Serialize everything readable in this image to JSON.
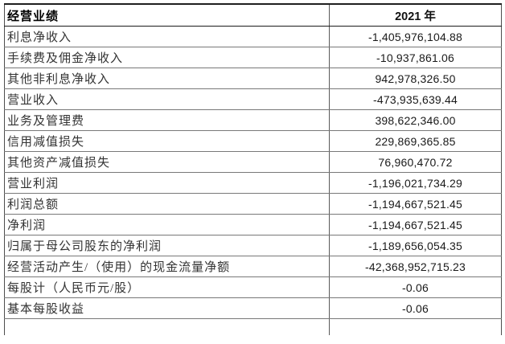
{
  "table": {
    "header": {
      "col1": "经营业绩",
      "col2": "2021 年"
    },
    "rows": [
      {
        "label": "利息净收入",
        "value": "-1,405,976,104.88"
      },
      {
        "label": "手续费及佣金净收入",
        "value": "-10,937,861.06"
      },
      {
        "label": "其他非利息净收入",
        "value": "942,978,326.50"
      },
      {
        "label": "营业收入",
        "value": "-473,935,639.44"
      },
      {
        "label": "业务及管理费",
        "value": "398,622,346.00"
      },
      {
        "label": "信用减值损失",
        "value": "229,869,365.85"
      },
      {
        "label": "其他资产减值损失",
        "value": "76,960,470.72"
      },
      {
        "label": "营业利润",
        "value": "-1,196,021,734.29"
      },
      {
        "label": "利润总额",
        "value": "-1,194,667,521.45"
      },
      {
        "label": "净利润",
        "value": "-1,194,667,521.45"
      },
      {
        "label": "归属于母公司股东的净利润",
        "value": "-1,189,656,054.35"
      },
      {
        "label": "经营活动产生/（使用）的现金流量净额",
        "value": "-42,368,952,715.23"
      },
      {
        "label": "每股计（人民币元/股）",
        "value": "-0.06"
      },
      {
        "label": "基本每股收益",
        "value": "-0.06"
      }
    ]
  },
  "colors": {
    "border_strong": "#1f1f1f",
    "border_inner": "#787878",
    "label_text": "#333333",
    "value_text": "#1a1a1a",
    "background": "#ffffff"
  }
}
